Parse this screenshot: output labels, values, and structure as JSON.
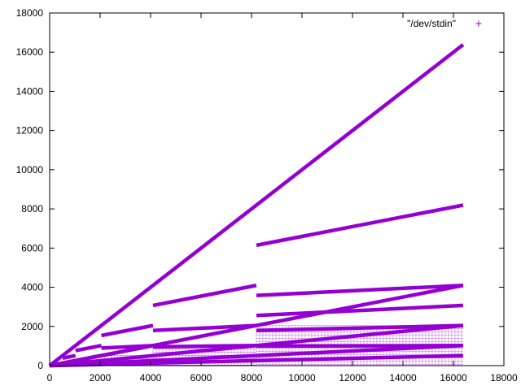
{
  "chart_data": {
    "type": "scatter",
    "title": "",
    "xlabel": "",
    "ylabel": "",
    "xlim": [
      0,
      18000
    ],
    "ylim": [
      0,
      18000
    ],
    "x_ticks": [
      0,
      2000,
      4000,
      6000,
      8000,
      10000,
      12000,
      14000,
      16000,
      18000
    ],
    "y_ticks": [
      0,
      2000,
      4000,
      6000,
      8000,
      10000,
      12000,
      14000,
      16000,
      18000
    ],
    "x_tick_labels": [
      "0",
      "2000",
      "4000",
      "6000",
      "8000",
      "10000",
      "12000",
      "14000",
      "16000",
      "18000"
    ],
    "y_tick_labels": [
      "0",
      "2000",
      "4000",
      "6000",
      "8000",
      "10000",
      "12000",
      "14000",
      "16000",
      "18000"
    ],
    "grid": false,
    "legend_position": "top-right",
    "marker": "+",
    "series_color": "#9400d3",
    "series": [
      {
        "name": "\"/dev/stdin\"",
        "segments": [
          {
            "x0": 0,
            "y0": 0,
            "x1": 16384,
            "y1": 16384
          },
          {
            "x0": 8192,
            "y0": 6144,
            "x1": 16384,
            "y1": 8192
          },
          {
            "x0": 4096,
            "y0": 3072,
            "x1": 8192,
            "y1": 4096
          },
          {
            "x0": 8192,
            "y0": 3584,
            "x1": 16384,
            "y1": 4096
          },
          {
            "x0": 0,
            "y0": 0,
            "x1": 16384,
            "y1": 4096
          },
          {
            "x0": 8192,
            "y0": 2560,
            "x1": 16384,
            "y1": 3072
          },
          {
            "x0": 2048,
            "y0": 1536,
            "x1": 4096,
            "y1": 2048
          },
          {
            "x0": 4096,
            "y0": 1792,
            "x1": 8192,
            "y1": 2048
          },
          {
            "x0": 8192,
            "y0": 1792,
            "x1": 16384,
            "y1": 2048
          },
          {
            "x0": 0,
            "y0": 0,
            "x1": 16384,
            "y1": 2048
          },
          {
            "x0": 1024,
            "y0": 768,
            "x1": 2048,
            "y1": 1024
          },
          {
            "x0": 2048,
            "y0": 896,
            "x1": 4096,
            "y1": 1024
          },
          {
            "x0": 4096,
            "y0": 960,
            "x1": 8192,
            "y1": 1024
          },
          {
            "x0": 8192,
            "y0": 1000,
            "x1": 16384,
            "y1": 1024
          },
          {
            "x0": 0,
            "y0": 0,
            "x1": 16384,
            "y1": 1024
          },
          {
            "x0": 0,
            "y0": 0,
            "x1": 4096,
            "y1": 1024
          },
          {
            "x0": 0,
            "y0": 0,
            "x1": 2048,
            "y1": 512
          },
          {
            "x0": 512,
            "y0": 384,
            "x1": 1024,
            "y1": 512
          },
          {
            "x0": 0,
            "y0": 0,
            "x1": 16384,
            "y1": 512
          }
        ],
        "hatch_regions": [
          {
            "x0": 8192,
            "x1": 16384,
            "y0": 0,
            "y1": 2048
          },
          {
            "x0": 4096,
            "x1": 8192,
            "y0": 0,
            "y1": 1024
          },
          {
            "x0": 2048,
            "x1": 4096,
            "y0": 0,
            "y1": 512
          }
        ]
      }
    ]
  }
}
